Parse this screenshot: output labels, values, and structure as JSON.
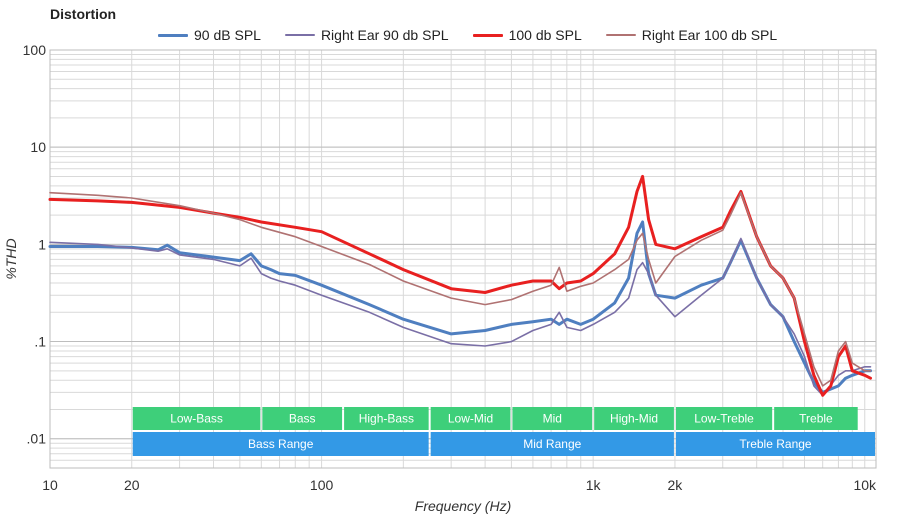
{
  "chart_data": {
    "type": "line",
    "title": "Distortion",
    "xlabel": "Frequency (Hz)",
    "ylabel": "%THD",
    "xscale": "log",
    "yscale": "log",
    "xlim": [
      10,
      11000
    ],
    "ylim": [
      0.005,
      100
    ],
    "x_ticks": [
      {
        "value": 10,
        "label": "10"
      },
      {
        "value": 20,
        "label": "20"
      },
      {
        "value": 100,
        "label": "100"
      },
      {
        "value": 1000,
        "label": "1k"
      },
      {
        "value": 2000,
        "label": "2k"
      },
      {
        "value": 10000,
        "label": "10k"
      }
    ],
    "y_ticks": [
      {
        "value": 100,
        "label": "100"
      },
      {
        "value": 10,
        "label": "10"
      },
      {
        "value": 1,
        "label": "1"
      },
      {
        "value": 0.1,
        "label": ".1"
      },
      {
        "value": 0.01,
        "label": ".01"
      }
    ],
    "legend_position": "top",
    "series": [
      {
        "name": "90 dB SPL",
        "color": "#4f7fc0",
        "width": 3,
        "x": [
          10,
          15,
          20,
          25,
          27,
          30,
          40,
          50,
          55,
          60,
          65,
          70,
          80,
          100,
          150,
          200,
          300,
          400,
          500,
          600,
          700,
          750,
          800,
          900,
          1000,
          1200,
          1350,
          1450,
          1520,
          1600,
          1700,
          2000,
          2500,
          3000,
          3200,
          3500,
          4000,
          4500,
          5000,
          5500,
          6000,
          6500,
          7000,
          8000,
          8500,
          9000,
          10000,
          10500
        ],
        "y": [
          0.95,
          0.95,
          0.93,
          0.88,
          0.98,
          0.82,
          0.74,
          0.68,
          0.8,
          0.6,
          0.55,
          0.5,
          0.48,
          0.38,
          0.24,
          0.17,
          0.12,
          0.13,
          0.15,
          0.16,
          0.17,
          0.15,
          0.17,
          0.15,
          0.17,
          0.25,
          0.45,
          1.3,
          1.7,
          0.5,
          0.3,
          0.28,
          0.38,
          0.45,
          0.65,
          1.1,
          0.45,
          0.24,
          0.18,
          0.1,
          0.06,
          0.038,
          0.03,
          0.035,
          0.042,
          0.045,
          0.05,
          0.05
        ]
      },
      {
        "name": "Right Ear 90 db SPL",
        "color": "#7a6fa6",
        "width": 1.6,
        "x": [
          10,
          15,
          20,
          25,
          27,
          30,
          40,
          50,
          55,
          60,
          65,
          70,
          80,
          100,
          150,
          200,
          300,
          400,
          500,
          600,
          700,
          750,
          800,
          900,
          1000,
          1200,
          1350,
          1450,
          1520,
          1600,
          1700,
          2000,
          2500,
          3000,
          3200,
          3500,
          4000,
          4500,
          5000,
          5500,
          6000,
          6500,
          7000,
          8000,
          8500,
          9000,
          10000,
          10500
        ],
        "y": [
          1.05,
          1.0,
          0.92,
          0.85,
          0.9,
          0.78,
          0.7,
          0.6,
          0.72,
          0.5,
          0.45,
          0.42,
          0.38,
          0.3,
          0.2,
          0.14,
          0.095,
          0.09,
          0.1,
          0.13,
          0.15,
          0.2,
          0.14,
          0.13,
          0.15,
          0.2,
          0.28,
          0.55,
          0.65,
          0.5,
          0.3,
          0.18,
          0.3,
          0.45,
          0.65,
          1.15,
          0.45,
          0.24,
          0.18,
          0.12,
          0.07,
          0.035,
          0.028,
          0.045,
          0.05,
          0.05,
          0.055,
          0.055
        ]
      },
      {
        "name": "100 db SPL",
        "color": "#e82020",
        "width": 3,
        "x": [
          10,
          15,
          20,
          30,
          40,
          50,
          60,
          80,
          100,
          150,
          200,
          300,
          400,
          500,
          600,
          700,
          750,
          800,
          900,
          1000,
          1200,
          1350,
          1450,
          1520,
          1600,
          1700,
          2000,
          2500,
          3000,
          3200,
          3500,
          4000,
          4500,
          5000,
          5500,
          6000,
          6500,
          7000,
          7500,
          8000,
          8500,
          9000,
          10000,
          10500
        ],
        "y": [
          2.9,
          2.8,
          2.7,
          2.4,
          2.1,
          1.9,
          1.7,
          1.5,
          1.35,
          0.8,
          0.55,
          0.35,
          0.32,
          0.38,
          0.42,
          0.42,
          0.35,
          0.4,
          0.42,
          0.5,
          0.8,
          1.5,
          3.5,
          5.0,
          1.8,
          1.0,
          0.9,
          1.2,
          1.5,
          2.2,
          3.5,
          1.2,
          0.6,
          0.45,
          0.28,
          0.1,
          0.045,
          0.028,
          0.035,
          0.07,
          0.09,
          0.05,
          0.045,
          0.042
        ]
      },
      {
        "name": "Right Ear 100 db SPL",
        "color": "#b07272",
        "width": 1.6,
        "x": [
          10,
          15,
          20,
          30,
          40,
          50,
          60,
          80,
          100,
          150,
          200,
          300,
          400,
          500,
          600,
          700,
          750,
          800,
          900,
          1000,
          1200,
          1350,
          1450,
          1520,
          1600,
          1700,
          2000,
          2500,
          3000,
          3200,
          3500,
          4000,
          4500,
          5000,
          5500,
          6000,
          6500,
          7000,
          7500,
          8000,
          8500,
          9000,
          10000,
          10500
        ],
        "y": [
          3.4,
          3.2,
          3.0,
          2.5,
          2.1,
          1.8,
          1.5,
          1.2,
          0.95,
          0.62,
          0.42,
          0.28,
          0.24,
          0.27,
          0.33,
          0.38,
          0.58,
          0.33,
          0.37,
          0.4,
          0.55,
          0.7,
          1.1,
          1.3,
          0.7,
          0.4,
          0.75,
          1.1,
          1.4,
          2.0,
          3.4,
          1.2,
          0.6,
          0.45,
          0.28,
          0.12,
          0.055,
          0.035,
          0.04,
          0.08,
          0.1,
          0.06,
          0.05,
          0.05
        ]
      }
    ],
    "range_bands": [
      {
        "label": "Low-Bass",
        "from": 20,
        "to": 60,
        "row": 1
      },
      {
        "label": "Bass",
        "from": 60,
        "to": 120,
        "row": 1
      },
      {
        "label": "High-Bass",
        "from": 120,
        "to": 250,
        "row": 1
      },
      {
        "label": "Low-Mid",
        "from": 250,
        "to": 500,
        "row": 1
      },
      {
        "label": "Mid",
        "from": 500,
        "to": 1000,
        "row": 1
      },
      {
        "label": "High-Mid",
        "from": 1000,
        "to": 2000,
        "row": 1
      },
      {
        "label": "Low-Treble",
        "from": 2000,
        "to": 4600,
        "row": 1
      },
      {
        "label": "Treble",
        "from": 4600,
        "to": 9500,
        "row": 1
      },
      {
        "label": "Bass Range",
        "from": 20,
        "to": 250,
        "row": 2
      },
      {
        "label": "Mid Range",
        "from": 250,
        "to": 2000,
        "row": 2
      },
      {
        "label": "Treble Range",
        "from": 2000,
        "to": 11000,
        "row": 2
      }
    ],
    "band_colors": {
      "row1": "#3ecf7a",
      "row2": "#3399e6"
    }
  }
}
